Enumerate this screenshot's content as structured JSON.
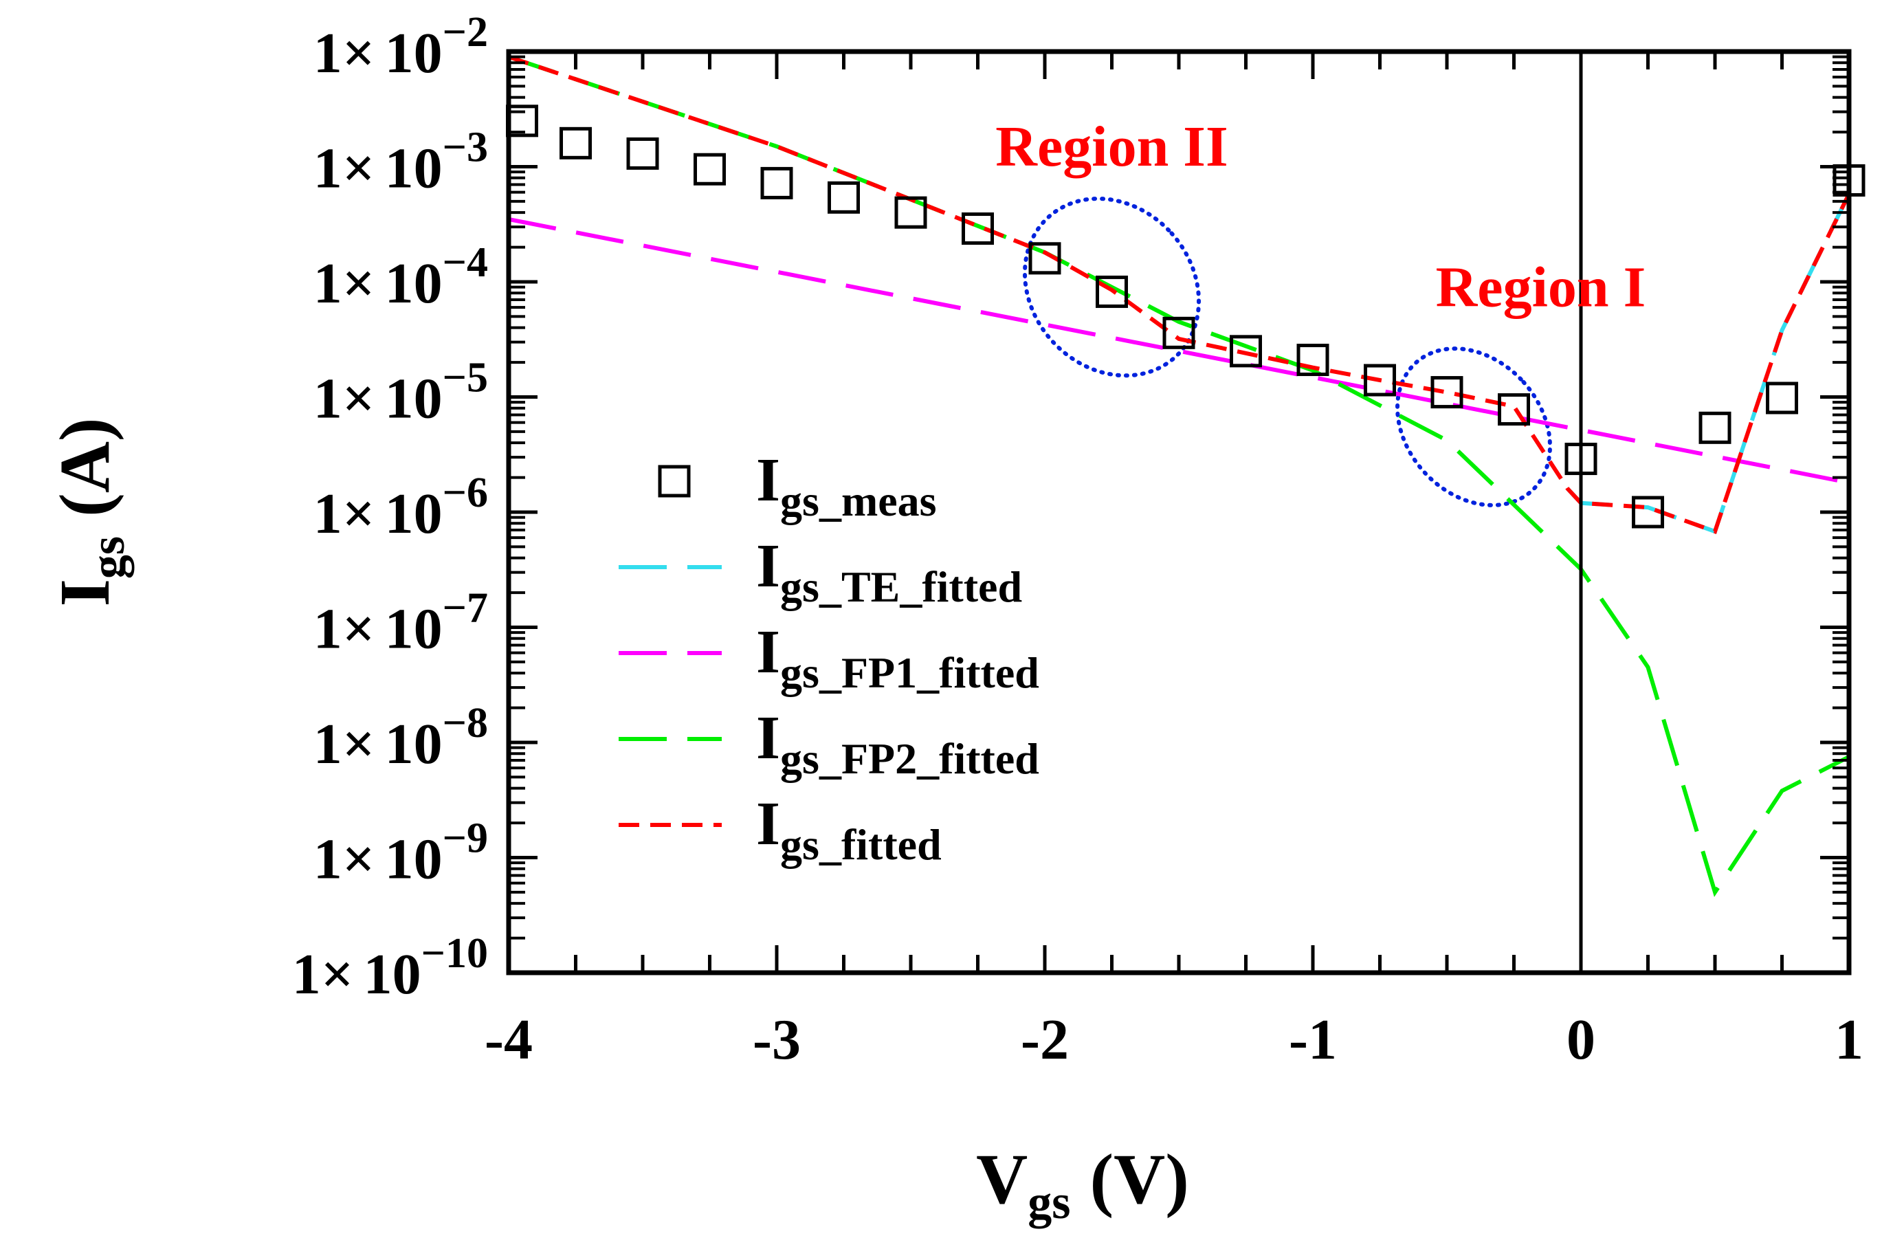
{
  "chart_data": {
    "type": "line",
    "xlabel": "V",
    "xlabel_sub": "gs",
    "xlabel_unit": "(V)",
    "ylabel": "I",
    "ylabel_sub": "gs",
    "ylabel_unit": "(A)",
    "xlim": [
      -4,
      1
    ],
    "ylim_log10": [
      -10,
      -2
    ],
    "yscale": "log",
    "x_ticks": [
      -4,
      -3,
      -2,
      -1,
      0,
      1
    ],
    "x_tick_labels": [
      "-4",
      "-3",
      "-2",
      "-1",
      "0",
      "1"
    ],
    "y_tick_exponents": [
      -2,
      -3,
      -4,
      -5,
      -6,
      -7,
      -8,
      -9,
      -10
    ],
    "y_tick_mantissa": "1×",
    "y_tick_base": "10",
    "vertical_line_x": 0,
    "legend_position": "center-left",
    "series": [
      {
        "name": "I",
        "sub": "gs_meas",
        "kind": "marker",
        "marker": "square",
        "color": "#000000",
        "x": [
          -3.95,
          -3.75,
          -3.5,
          -3.25,
          -3.0,
          -2.75,
          -2.5,
          -2.25,
          -2.0,
          -1.75,
          -1.5,
          -1.25,
          -1.0,
          -0.75,
          -0.5,
          -0.25,
          0.0,
          0.25,
          0.5,
          0.75,
          1.0
        ],
        "y": [
          0.0025,
          0.0016,
          0.0013,
          0.00095,
          0.00072,
          0.00054,
          0.0004,
          0.00029,
          0.00016,
          8.2e-05,
          3.6e-05,
          2.5e-05,
          2.1e-05,
          1.4e-05,
          1.1e-05,
          7.8e-06,
          2.9e-06,
          1e-06,
          5.4e-06,
          9.8e-06,
          0.00076
        ]
      },
      {
        "name": "I",
        "sub": "gs_TE_fitted",
        "kind": "line",
        "dash": "long",
        "color": "#33ddee",
        "x": [
          -0.05,
          0.0,
          0.25,
          0.5,
          0.75,
          1.0
        ],
        "y": [
          1.6e-06,
          1.2e-06,
          1.1e-06,
          6.8e-07,
          3.8e-05,
          0.00058
        ]
      },
      {
        "name": "I",
        "sub": "gs_FP1_fitted",
        "kind": "line",
        "dash": "long",
        "color": "#ff00ff",
        "x": [
          -4.0,
          1.0
        ],
        "y": [
          0.00035,
          1.8e-06
        ]
      },
      {
        "name": "I",
        "sub": "gs_FP2_fitted",
        "kind": "line",
        "dash": "long",
        "color": "#00ee00",
        "x": [
          -4.0,
          -3.0,
          -2.0,
          -1.5,
          -1.0,
          -0.5,
          0.0,
          0.25,
          0.5,
          0.75,
          1.0
        ],
        "y": [
          0.009,
          0.0015,
          0.00018,
          4.5e-05,
          1.7e-05,
          4.2e-06,
          3.2e-07,
          4.5e-08,
          5e-10,
          3.8e-09,
          7.5e-09
        ]
      },
      {
        "name": "I",
        "sub": "gs_fitted",
        "kind": "line",
        "dash": "short",
        "color": "#ff0000",
        "x": [
          -4.0,
          -3.0,
          -2.0,
          -1.75,
          -1.5,
          -1.0,
          -0.75,
          -0.5,
          -0.25,
          -0.05,
          0.0,
          0.25,
          0.5,
          0.75,
          1.0
        ],
        "y": [
          0.009,
          0.0015,
          0.00018,
          8.5e-05,
          3.2e-05,
          1.8e-05,
          1.4e-05,
          1.1e-05,
          8.3e-06,
          1.6e-06,
          1.2e-06,
          1.1e-06,
          6.8e-07,
          3.8e-05,
          0.00058
        ]
      }
    ],
    "annotations": [
      {
        "text": "Region II",
        "x": -1.75,
        "y": 0.0015,
        "color": "#ff0000"
      },
      {
        "text": "Region I",
        "x": -0.15,
        "y": 9e-05,
        "color": "#ff0000"
      }
    ],
    "highlight_ellipses": [
      {
        "cx": -1.75,
        "cy": 9e-05,
        "rx_data": 0.3,
        "ry_decades": 0.82,
        "angle": 42,
        "color": "#0022dd"
      },
      {
        "cx": -0.4,
        "cy": 5.5e-06,
        "rx_data": 0.25,
        "ry_decades": 0.75,
        "angle": 42,
        "color": "#0022dd"
      }
    ]
  }
}
